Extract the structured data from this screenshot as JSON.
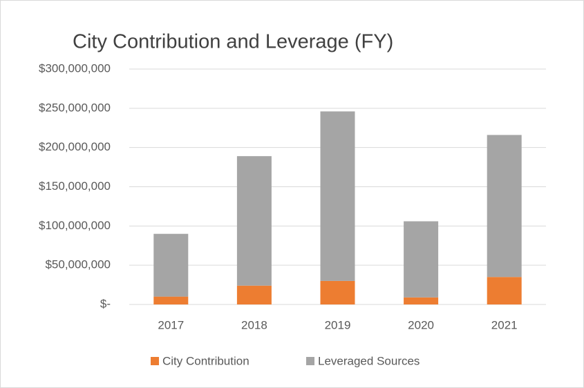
{
  "chart_data": {
    "type": "bar",
    "stacked": true,
    "title": "City Contribution and Leverage (FY)",
    "categories": [
      "2017",
      "2018",
      "2019",
      "2020",
      "2021"
    ],
    "series": [
      {
        "name": "City Contribution",
        "color": "#ed7d31",
        "values": [
          10000000,
          24000000,
          30000000,
          9000000,
          35000000
        ]
      },
      {
        "name": "Leveraged Sources",
        "color": "#a5a5a5",
        "values": [
          80000000,
          165000000,
          216000000,
          97000000,
          181000000
        ]
      }
    ],
    "ylim": [
      0,
      300000000
    ],
    "yticks": [
      {
        "value": 0,
        "label": "$-"
      },
      {
        "value": 50000000,
        "label": "$50,000,000"
      },
      {
        "value": 100000000,
        "label": "$100,000,000"
      },
      {
        "value": 150000000,
        "label": "$150,000,000"
      },
      {
        "value": 200000000,
        "label": "$200,000,000"
      },
      {
        "value": 250000000,
        "label": "$250,000,000"
      },
      {
        "value": 300000000,
        "label": "$300,000,000"
      }
    ],
    "grid": true,
    "legend": "bottom"
  }
}
